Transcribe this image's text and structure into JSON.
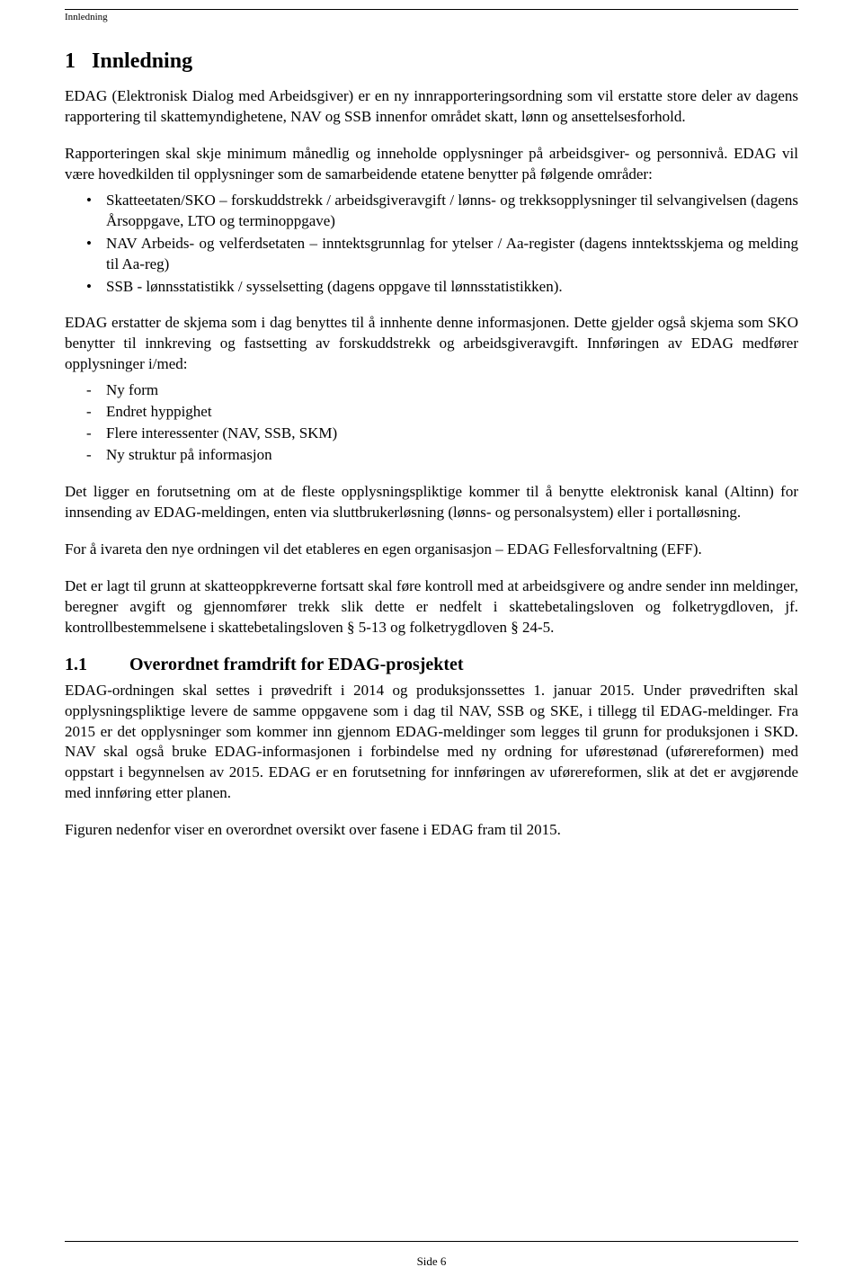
{
  "header": {
    "section": "Innledning"
  },
  "h1": {
    "number": "1",
    "title": "Innledning"
  },
  "intro_para": "EDAG (Elektronisk Dialog med Arbeidsgiver) er en ny innrapporteringsordning som vil erstatte store deler av dagens rapportering til skattemyndighetene, NAV og SSB innenfor området skatt, lønn og ansettelsesforhold.",
  "para2": "Rapporteringen skal skje minimum månedlig og inneholde opplysninger på arbeidsgiver- og personnivå. EDAG vil være hovedkilden til opplysninger som de samarbeidende etatene benytter på følgende områder:",
  "bullets": [
    "Skatteetaten/SKO – forskuddstrekk / arbeidsgiveravgift / lønns- og trekksopplysninger til selvangivelsen (dagens Årsoppgave, LTO og terminoppgave)",
    "NAV Arbeids- og velferdsetaten – inntektsgrunnlag for ytelser / Aa-register (dagens inntektsskjema og melding til Aa-reg)",
    "SSB - lønnsstatistikk / sysselsetting (dagens oppgave til lønnsstatistikken)."
  ],
  "para3": "EDAG erstatter de skjema som i dag benyttes til å innhente denne informasjonen. Dette gjelder også skjema som SKO benytter til innkreving og fastsetting av forskuddstrekk og arbeidsgiveravgift. Innføringen av EDAG medfører opplysninger i/med:",
  "dashes": [
    "Ny form",
    "Endret hyppighet",
    "Flere interessenter (NAV, SSB, SKM)",
    "Ny struktur på informasjon"
  ],
  "para4": "Det ligger en forutsetning om at de fleste opplysningspliktige kommer til å benytte elektronisk kanal (Altinn) for innsending av EDAG-meldingen, enten via sluttbrukerløsning (lønns- og personalsystem) eller i portalløsning.",
  "para5": "For å ivareta den nye ordningen vil det etableres en egen organisasjon – EDAG Fellesforvaltning (EFF).",
  "para6": "Det er lagt til grunn at skatteoppkreverne fortsatt skal føre kontroll med at arbeidsgivere og andre sender inn meldinger, beregner avgift og gjennomfører trekk slik dette er nedfelt i skattebetalingsloven og folketrygdloven, jf. kontrollbestemmelsene i skattebetalingsloven § 5-13 og folketrygdloven § 24-5.",
  "h2": {
    "number": "1.1",
    "title": "Overordnet framdrift for EDAG-prosjektet"
  },
  "para7": "EDAG-ordningen skal settes i prøvedrift i 2014 og produksjonssettes 1. januar 2015. Under prøvedriften skal opplysningspliktige levere de samme oppgavene som i dag til NAV, SSB og SKE, i tillegg til EDAG-meldinger. Fra 2015 er det opplysninger som kommer inn gjennom EDAG-meldinger som legges til grunn for produksjonen i SKD. NAV skal også bruke EDAG-informasjonen i forbindelse med ny ordning for uførestønad (uførereformen) med oppstart i begynnelsen av 2015. EDAG er en forutsetning for innføringen av uførereformen, slik at det er avgjørende med innføring etter planen.",
  "para8": "Figuren nedenfor viser en overordnet oversikt over fasene i EDAG fram til 2015.",
  "footer": {
    "page_label": "Side 6"
  }
}
